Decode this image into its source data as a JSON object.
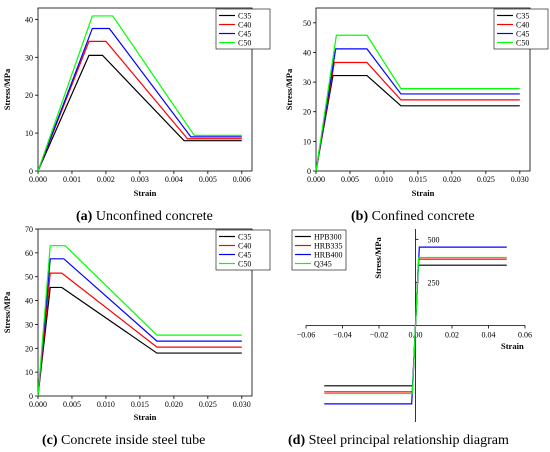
{
  "panels": [
    {
      "caption_letter": "(a)",
      "caption_text": " Unconfined concrete",
      "chart_data": {
        "type": "line",
        "xlabel": "Strain",
        "ylabel": "Stress/MPa",
        "xlim": [
          0,
          0.0063
        ],
        "ylim": [
          0,
          43
        ],
        "xticks": [
          "0.000",
          "0.001",
          "0.002",
          "0.003",
          "0.004",
          "0.005",
          "0.006"
        ],
        "yticks": [
          "0",
          "10",
          "20",
          "30",
          "40"
        ],
        "legend_position": "top-right",
        "series": [
          {
            "name": "C35",
            "color": "#000000",
            "x": [
              0,
              0.0015,
              0.0019,
              0.0043,
              0.006
            ],
            "y": [
              0,
              30.5,
              30.5,
              8.0,
              8.0
            ]
          },
          {
            "name": "C40",
            "color": "#ff0000",
            "x": [
              0,
              0.0015,
              0.002,
              0.0044,
              0.006
            ],
            "y": [
              0,
              34.2,
              34.2,
              8.5,
              8.5
            ]
          },
          {
            "name": "C45",
            "color": "#0000ff",
            "x": [
              0,
              0.0016,
              0.0021,
              0.0045,
              0.006
            ],
            "y": [
              0,
              37.6,
              37.6,
              9.0,
              9.0
            ]
          },
          {
            "name": "C50",
            "color": "#00ff00",
            "x": [
              0,
              0.0016,
              0.0022,
              0.0046,
              0.006
            ],
            "y": [
              0,
              40.9,
              40.9,
              9.4,
              9.4
            ]
          }
        ]
      }
    },
    {
      "caption_letter": "(b)",
      "caption_text": " Confined concrete",
      "chart_data": {
        "type": "line",
        "xlabel": "Strain",
        "ylabel": "Stress/MPa",
        "xlim": [
          0,
          0.0315
        ],
        "ylim": [
          0,
          55
        ],
        "xticks": [
          "0.000",
          "0.005",
          "0.010",
          "0.015",
          "0.020",
          "0.025",
          "0.030"
        ],
        "yticks": [
          "0",
          "10",
          "20",
          "30",
          "40",
          "50"
        ],
        "legend_position": "top-right",
        "series": [
          {
            "name": "C35",
            "color": "#000000",
            "x": [
              0,
              0.0025,
              0.0075,
              0.0125,
              0.03
            ],
            "y": [
              0,
              32.2,
              32.2,
              22.0,
              22.0
            ]
          },
          {
            "name": "C40",
            "color": "#ff0000",
            "x": [
              0,
              0.0027,
              0.0075,
              0.0125,
              0.03
            ],
            "y": [
              0,
              36.6,
              36.6,
              24.0,
              24.0
            ]
          },
          {
            "name": "C45",
            "color": "#0000ff",
            "x": [
              0,
              0.0029,
              0.0075,
              0.0125,
              0.03
            ],
            "y": [
              0,
              41.2,
              41.2,
              26.0,
              26.0
            ]
          },
          {
            "name": "C50",
            "color": "#00ff00",
            "x": [
              0,
              0.003,
              0.0075,
              0.0125,
              0.03
            ],
            "y": [
              0,
              45.8,
              45.8,
              27.8,
              27.8
            ]
          }
        ]
      }
    },
    {
      "caption_letter": "(c)",
      "caption_text": " Concrete inside steel tube",
      "chart_data": {
        "type": "line",
        "xlabel": "Strain",
        "ylabel": "Stress/MPa",
        "xlim": [
          0,
          0.0315
        ],
        "ylim": [
          0,
          70
        ],
        "xticks": [
          "0.000",
          "0.005",
          "0.010",
          "0.015",
          "0.020",
          "0.025",
          "0.030"
        ],
        "yticks": [
          "0",
          "10",
          "20",
          "30",
          "40",
          "50",
          "60",
          "70"
        ],
        "legend_position": "top-right",
        "series": [
          {
            "name": "C35",
            "color": "#000000",
            "x": [
              0,
              0.0018,
              0.0035,
              0.0175,
              0.03
            ],
            "y": [
              0,
              45.5,
              45.5,
              18.0,
              18.0
            ]
          },
          {
            "name": "C40",
            "color": "#ff0000",
            "x": [
              0,
              0.0018,
              0.0035,
              0.0175,
              0.03
            ],
            "y": [
              0,
              51.5,
              51.5,
              20.5,
              20.5
            ]
          },
          {
            "name": "C45",
            "color": "#0000ff",
            "x": [
              0,
              0.0018,
              0.0038,
              0.0175,
              0.03
            ],
            "y": [
              0,
              57.5,
              57.5,
              23.0,
              23.0
            ]
          },
          {
            "name": "C50",
            "color": "#00ff00",
            "x": [
              0,
              0.0018,
              0.004,
              0.0175,
              0.03
            ],
            "y": [
              0,
              63.0,
              63.0,
              25.5,
              25.5
            ]
          }
        ]
      }
    },
    {
      "caption_letter": "(d)",
      "caption_text": " Steel principal relationship diagram",
      "chart_data": {
        "type": "line",
        "xlabel": "Strain",
        "ylabel": "Stress/MPa",
        "xlim": [
          -0.06,
          0.06
        ],
        "ylim": [
          -560,
          560
        ],
        "xticks": [
          "−0.06",
          "−0.04",
          "−0.02",
          "0.00",
          "0.02",
          "0.04",
          "0.06"
        ],
        "xtick_values": [
          -0.06,
          -0.04,
          -0.02,
          0,
          0.02,
          0.04,
          0.06
        ],
        "yticks": [
          "250",
          "500"
        ],
        "ytick_values": [
          250,
          500
        ],
        "legend_position": "top-left",
        "series": [
          {
            "name": "HPB300",
            "color": "#000000",
            "x": [
              -0.05,
              -0.0015,
              0.0015,
              0.05
            ],
            "y": [
              -350,
              -350,
              350,
              350
            ]
          },
          {
            "name": "HRB335",
            "color": "#ff0000",
            "x": [
              -0.05,
              -0.0017,
              0.0017,
              0.05
            ],
            "y": [
              -385,
              -385,
              385,
              385
            ]
          },
          {
            "name": "HRB400",
            "color": "#0000ff",
            "x": [
              -0.05,
              -0.0021,
              0.0021,
              0.05
            ],
            "y": [
              -455,
              -455,
              455,
              455
            ]
          },
          {
            "name": "Q345",
            "color": "#00ff00",
            "x": [
              -0.05,
              -0.0017,
              0.0017,
              0.05
            ],
            "y": [
              -395,
              -395,
              395,
              395
            ]
          }
        ]
      }
    }
  ]
}
